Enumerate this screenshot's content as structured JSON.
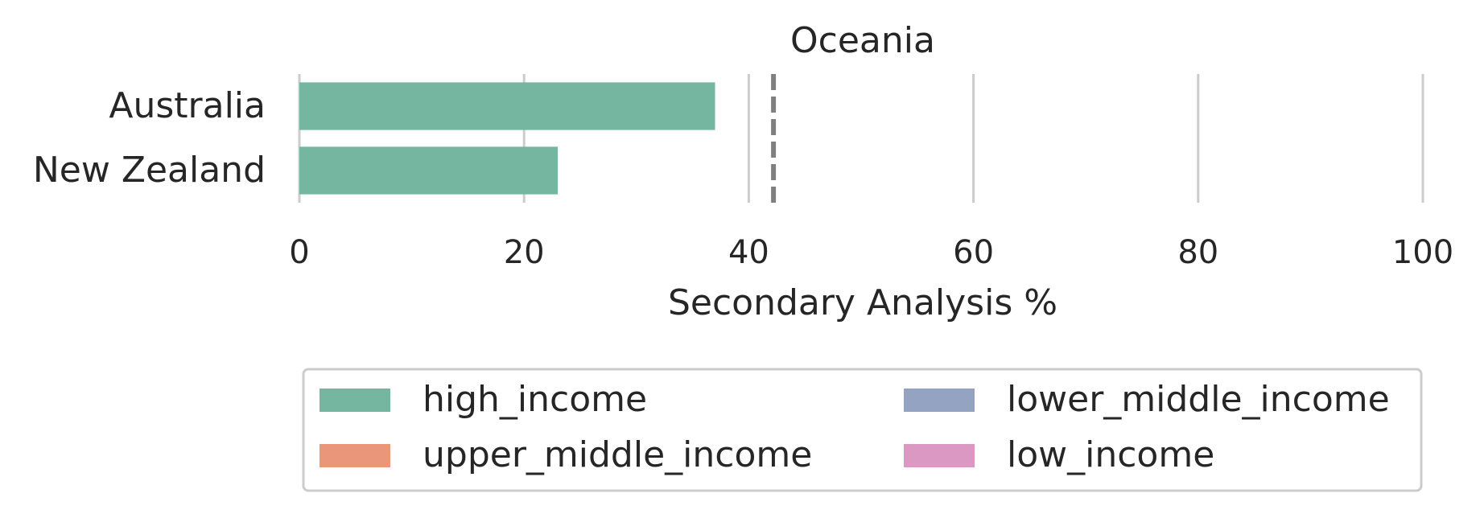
{
  "chart_data": {
    "type": "bar",
    "orientation": "horizontal",
    "title": "Oceania",
    "xlabel": "Secondary Analysis %",
    "ylabel": "",
    "xlim": [
      0,
      100
    ],
    "xticks": [
      "0",
      "20",
      "40",
      "60",
      "80",
      "100"
    ],
    "grid": true,
    "categories": [
      "Australia",
      "New Zealand"
    ],
    "values": [
      37,
      23
    ],
    "bar_color": "#75b6a0",
    "reference_line": {
      "value": 42.2,
      "style": "dashed",
      "color": "#808080"
    },
    "legend": {
      "placement": "bottom",
      "entries": [
        {
          "label": "high_income",
          "color": "#75b6a0"
        },
        {
          "label": "lower_middle_income",
          "color": "#95a3c3"
        },
        {
          "label": "upper_middle_income",
          "color": "#e9967a"
        },
        {
          "label": "low_income",
          "color": "#db98c3"
        }
      ]
    }
  }
}
